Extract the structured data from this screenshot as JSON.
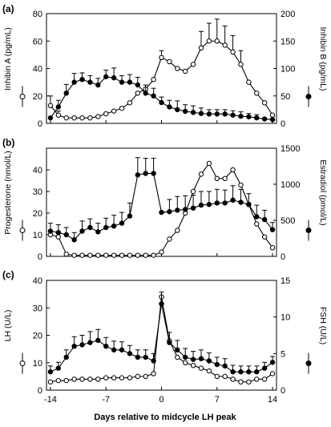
{
  "figure": {
    "x_axis_label": "Days relative to midcycle LH peak"
  },
  "chart_data": [
    {
      "panel": "(a)",
      "type": "line",
      "left_axis": {
        "label": "Inhibin A (pg/mL)",
        "ticks": [
          0,
          20,
          40,
          60,
          80
        ],
        "ylim": [
          0,
          80
        ]
      },
      "right_axis": {
        "label": "Inhibin B (pg/mL)",
        "ticks": [
          0,
          50,
          100,
          150,
          200
        ],
        "ylim": [
          0,
          200
        ]
      },
      "x": [
        -14,
        -13,
        -12,
        -11,
        -10,
        -9,
        -8,
        -7,
        -6,
        -5,
        -4,
        -3,
        -2,
        -1,
        0,
        1,
        2,
        3,
        4,
        5,
        6,
        7,
        8,
        9,
        10,
        11,
        12,
        13,
        14
      ],
      "xticks": [
        -14,
        -7,
        0,
        7,
        14
      ],
      "xlim": [
        -14.5,
        14.5
      ],
      "series": [
        {
          "axis": "left",
          "marker": "open",
          "values": [
            13,
            6,
            4,
            4,
            4,
            4,
            5,
            7,
            9,
            11,
            15,
            22,
            25,
            32,
            48,
            45,
            40,
            38,
            43,
            55,
            60,
            60,
            57,
            52,
            43,
            30,
            22,
            15,
            6
          ],
          "errors": [
            7,
            3,
            0,
            0,
            0,
            0,
            0,
            0,
            0,
            0,
            0,
            0,
            0,
            0,
            5,
            0,
            0,
            0,
            0,
            12,
            13,
            16,
            14,
            12,
            10,
            0,
            0,
            0,
            0
          ]
        },
        {
          "axis": "right",
          "marker": "filled",
          "values": [
            10,
            30,
            55,
            75,
            80,
            75,
            70,
            85,
            83,
            75,
            75,
            70,
            55,
            50,
            38,
            30,
            25,
            22,
            20,
            18,
            17,
            17,
            17,
            15,
            13,
            12,
            10,
            8,
            7
          ],
          "errors": [
            0,
            12,
            16,
            16,
            12,
            12,
            12,
            12,
            18,
            12,
            14,
            14,
            15,
            14,
            10,
            12,
            16,
            12,
            12,
            10,
            8,
            8,
            8,
            8,
            8,
            6,
            6,
            0,
            0
          ]
        }
      ]
    },
    {
      "panel": "(b)",
      "type": "line",
      "left_axis": {
        "label": "Progesterone (nmol/L)",
        "ticks": [
          0,
          10,
          20,
          30,
          40
        ],
        "ylim": [
          0,
          50
        ]
      },
      "right_axis": {
        "label": "Estradiol (pmol/L)",
        "ticks": [
          0,
          500,
          1000,
          1500
        ],
        "ylim": [
          0,
          1500
        ]
      },
      "x": [
        -14,
        -13,
        -12,
        -11,
        -10,
        -9,
        -8,
        -7,
        -6,
        -5,
        -4,
        -3,
        -2,
        -1,
        0,
        1,
        2,
        3,
        4,
        5,
        6,
        7,
        8,
        9,
        10,
        11,
        12,
        13,
        14
      ],
      "xticks": [
        -14,
        -7,
        0,
        7,
        14
      ],
      "xlim": [
        -14.5,
        14.5
      ],
      "series": [
        {
          "axis": "left",
          "marker": "open",
          "values": [
            10,
            9,
            1,
            0.5,
            0.5,
            0.5,
            0.5,
            0.5,
            0.5,
            0.5,
            0.5,
            0.5,
            0.5,
            0.5,
            2,
            8,
            12,
            20,
            30,
            38,
            43,
            36,
            36,
            40,
            33,
            24,
            15,
            9,
            4
          ],
          "errors": [
            0,
            0,
            0,
            0,
            0,
            0,
            0,
            0,
            0,
            0,
            0,
            0,
            0,
            0,
            0,
            0,
            0,
            0,
            0,
            0,
            0,
            0,
            0,
            0,
            0,
            0,
            0,
            0,
            0
          ]
        },
        {
          "axis": "right",
          "marker": "filled",
          "values": [
            350,
            330,
            300,
            230,
            350,
            400,
            340,
            400,
            420,
            460,
            560,
            1130,
            1150,
            1150,
            610,
            620,
            640,
            650,
            670,
            710,
            720,
            740,
            740,
            780,
            750,
            720,
            550,
            510,
            370
          ],
          "errors": [
            110,
            110,
            100,
            100,
            140,
            120,
            120,
            130,
            150,
            150,
            180,
            240,
            210,
            210,
            0,
            170,
            190,
            190,
            180,
            190,
            180,
            190,
            180,
            200,
            180,
            150,
            160,
            130,
            100
          ]
        }
      ]
    },
    {
      "panel": "(c)",
      "type": "line",
      "left_axis": {
        "label": "LH (U/L)",
        "ticks": [
          0,
          10,
          20,
          30,
          40
        ],
        "ylim": [
          0,
          40
        ]
      },
      "right_axis": {
        "label": "FSH (U/L)",
        "ticks": [
          0,
          5,
          10,
          15
        ],
        "ylim": [
          0,
          15
        ]
      },
      "x": [
        -14,
        -13,
        -12,
        -11,
        -10,
        -9,
        -8,
        -7,
        -6,
        -5,
        -4,
        -3,
        -2,
        -1,
        0,
        1,
        2,
        3,
        4,
        5,
        6,
        7,
        8,
        9,
        10,
        11,
        12,
        13,
        14
      ],
      "xticks": [
        -14,
        -7,
        0,
        7,
        14
      ],
      "xlim": [
        -14.5,
        14.5
      ],
      "series": [
        {
          "axis": "left",
          "marker": "open",
          "values": [
            3,
            3.5,
            3.5,
            4,
            4,
            4,
            4,
            4.5,
            4.5,
            4.5,
            4.5,
            5,
            5,
            6,
            34,
            18,
            12,
            10,
            9,
            8,
            7,
            5,
            5,
            4,
            3,
            3,
            4,
            4,
            6
          ],
          "errors": [
            0,
            0,
            0,
            0,
            0,
            0,
            0,
            0,
            0,
            0,
            0,
            0,
            0,
            0,
            0,
            0,
            0,
            0,
            0,
            0,
            0,
            0,
            0,
            0,
            0,
            0,
            0,
            0,
            0
          ]
        },
        {
          "axis": "right",
          "marker": "filled",
          "values": [
            2.5,
            3,
            4.5,
            6,
            6.2,
            6.5,
            6.8,
            6,
            5.5,
            5.5,
            5,
            4.5,
            4.5,
            4,
            11.8,
            6.5,
            5.5,
            4.5,
            4.2,
            4.3,
            4,
            3.5,
            3.3,
            2.5,
            2.5,
            2.5,
            2.5,
            3,
            3.8
          ],
          "errors": [
            0.8,
            0.8,
            1,
            1.3,
            1.3,
            1.5,
            1.5,
            1.2,
            1.2,
            1.1,
            1.1,
            1,
            1,
            1,
            1.6,
            1.4,
            1.3,
            1.2,
            1.1,
            1.2,
            1.1,
            1,
            1,
            0.9,
            0.8,
            0.8,
            0.8,
            0.8,
            0.8
          ]
        }
      ]
    }
  ]
}
